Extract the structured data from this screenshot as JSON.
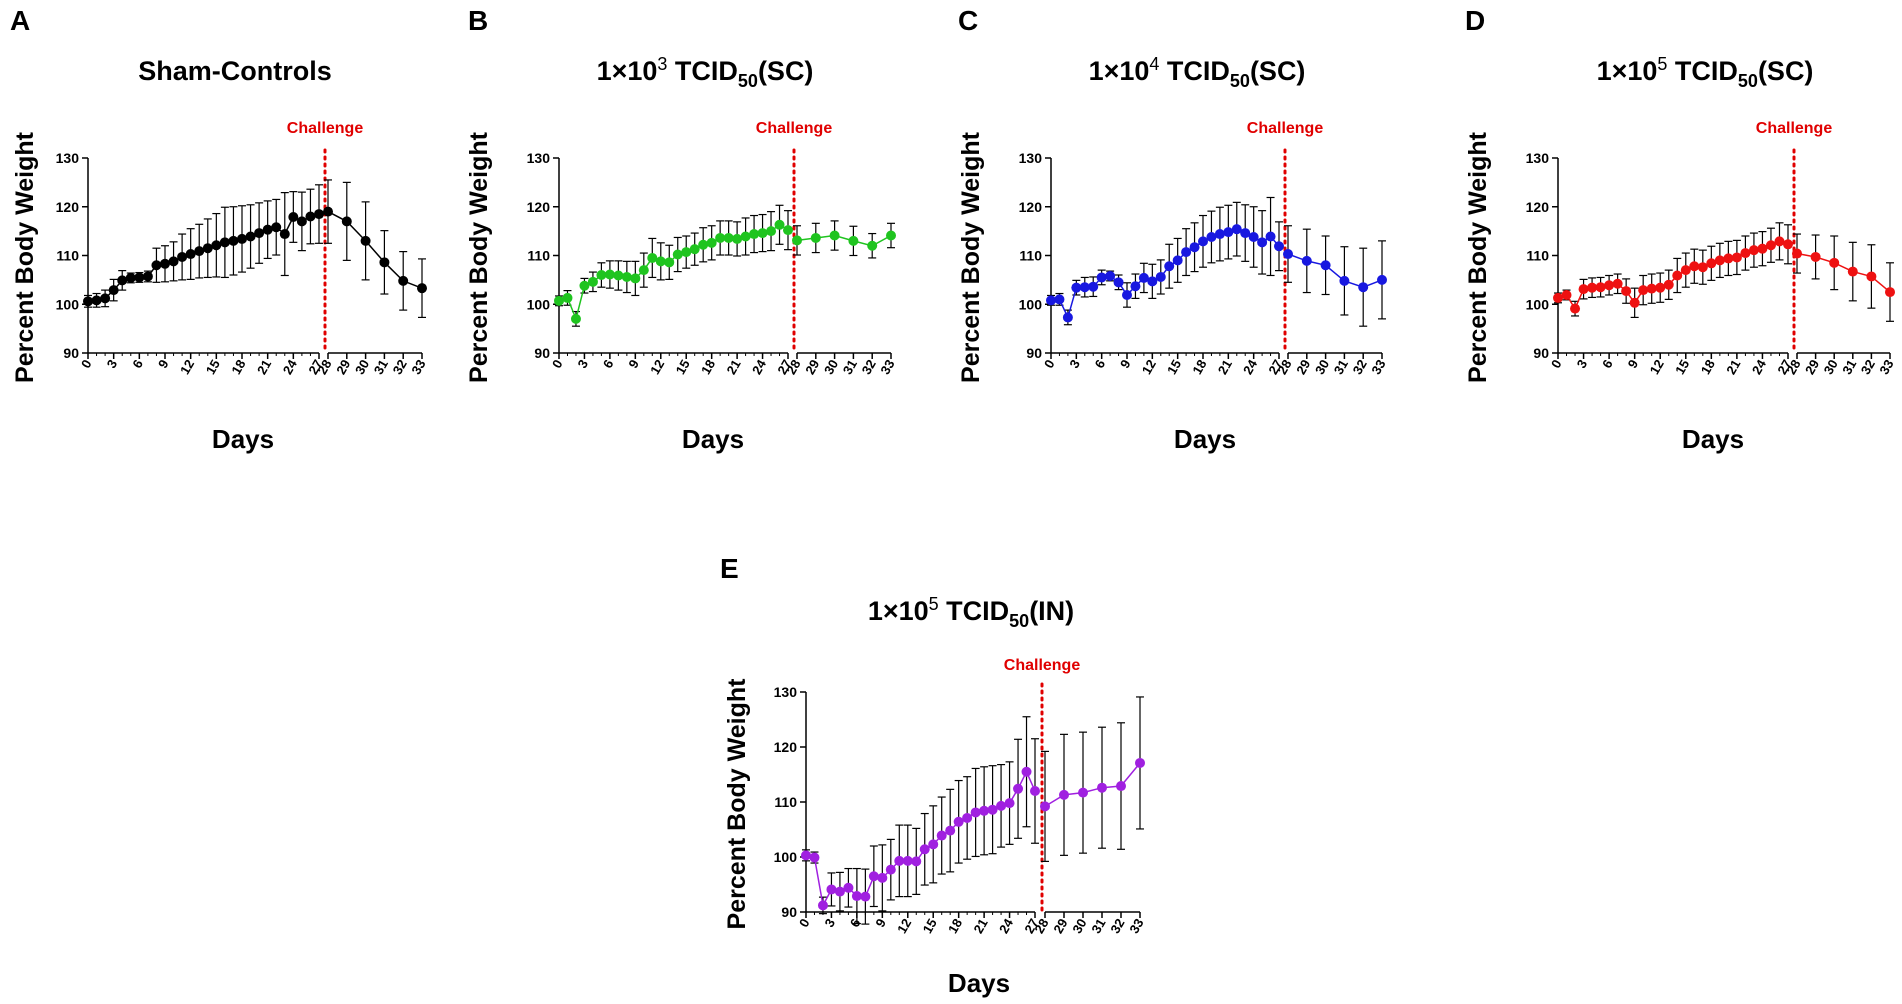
{
  "chart_data": [
    {
      "type": "line",
      "panel_label": "A",
      "title": "Sham-Controls",
      "title_sub": "",
      "title_suffix": "",
      "xlabel": "Days",
      "ylabel": "Percent Body Weight",
      "ylim": [
        90,
        130
      ],
      "yticks": [
        90,
        100,
        110,
        120,
        130
      ],
      "xticks_pre": [
        "0",
        "3",
        "6",
        "9",
        "12",
        "15",
        "18",
        "21",
        "24",
        "27"
      ],
      "xticks_post": [
        "28",
        "29",
        "30",
        "31",
        "32",
        "33"
      ],
      "challenge_label": "Challenge",
      "color": "#000000",
      "series": [
        {
          "name": "pre-challenge",
          "x": [
            0,
            1,
            2,
            3,
            4,
            5,
            6,
            7,
            8,
            9,
            10,
            11,
            12,
            13,
            14,
            15,
            16,
            17,
            18,
            19,
            20,
            21,
            22,
            23,
            24,
            25,
            26,
            27
          ],
          "y": [
            100.6,
            100.8,
            101.2,
            102.9,
            104.9,
            105.4,
            105.5,
            105.7,
            108.0,
            108.3,
            108.8,
            109.7,
            110.3,
            110.9,
            111.5,
            112.1,
            112.7,
            113.0,
            113.4,
            113.9,
            114.6,
            115.3,
            115.8,
            114.4,
            117.9,
            117.0,
            118.0,
            118.5
          ],
          "err": [
            1.2,
            1.4,
            1.7,
            2.2,
            2.0,
            1.0,
            1.0,
            1.1,
            3.5,
            3.7,
            4.0,
            4.7,
            5.2,
            5.5,
            6.0,
            6.5,
            7.2,
            7.0,
            6.8,
            6.5,
            6.2,
            5.9,
            5.7,
            8.5,
            5.2,
            6.0,
            5.6,
            6.0
          ]
        },
        {
          "name": "post-challenge",
          "x": [
            28,
            29,
            30,
            31,
            32,
            33
          ],
          "y": [
            119.0,
            117.0,
            113.0,
            108.6,
            104.8,
            103.3
          ],
          "err": [
            6.5,
            8.0,
            8.0,
            6.5,
            6.0,
            6.0
          ]
        }
      ]
    },
    {
      "type": "line",
      "panel_label": "B",
      "title": "1×10",
      "title_sub": "50",
      "title_suffix": "(SC)",
      "title_exp": "3",
      "title_mid": " TCID",
      "xlabel": "Days",
      "ylabel": "Percent Body Weight",
      "ylim": [
        90,
        130
      ],
      "yticks": [
        90,
        100,
        110,
        120,
        130
      ],
      "xticks_pre": [
        "0",
        "3",
        "6",
        "9",
        "12",
        "15",
        "18",
        "21",
        "24",
        "27"
      ],
      "xticks_post": [
        "28",
        "29",
        "30",
        "31",
        "32",
        "33"
      ],
      "challenge_label": "Challenge",
      "color": "#1fc41f",
      "series": [
        {
          "name": "pre-challenge",
          "x": [
            0,
            1,
            2,
            3,
            4,
            5,
            6,
            7,
            8,
            9,
            10,
            11,
            12,
            13,
            14,
            15,
            16,
            17,
            18,
            19,
            20,
            21,
            22,
            23,
            24,
            25,
            26,
            27
          ],
          "y": [
            100.7,
            101.3,
            97.0,
            103.8,
            104.6,
            106.0,
            106.1,
            105.9,
            105.6,
            105.3,
            107.0,
            109.5,
            108.8,
            108.6,
            110.2,
            110.7,
            111.3,
            112.2,
            112.6,
            113.6,
            113.6,
            113.4,
            113.9,
            114.4,
            114.6,
            115.0,
            116.3,
            115.2
          ],
          "err": [
            1.0,
            1.5,
            1.5,
            1.5,
            2.0,
            2.5,
            2.8,
            3.0,
            3.2,
            3.5,
            3.5,
            4.0,
            3.8,
            3.5,
            3.5,
            3.3,
            3.3,
            3.5,
            3.5,
            3.5,
            3.5,
            3.5,
            3.8,
            3.8,
            3.8,
            4.0,
            4.0,
            4.0
          ]
        },
        {
          "name": "post-challenge",
          "x": [
            28,
            29,
            30,
            31,
            32,
            33
          ],
          "y": [
            113.1,
            113.6,
            114.1,
            113.0,
            112.0,
            114.1
          ],
          "err": [
            3.0,
            3.0,
            3.0,
            3.0,
            2.5,
            2.5
          ]
        }
      ]
    },
    {
      "type": "line",
      "panel_label": "C",
      "title": "1×10",
      "title_sub": "50",
      "title_suffix": "(SC)",
      "title_exp": "4",
      "title_mid": " TCID",
      "xlabel": "Days",
      "ylabel": "Percent Body Weight",
      "ylim": [
        90,
        130
      ],
      "yticks": [
        90,
        100,
        110,
        120,
        130
      ],
      "xticks_pre": [
        "0",
        "3",
        "6",
        "9",
        "12",
        "15",
        "18",
        "21",
        "24",
        "27"
      ],
      "xticks_post": [
        "28",
        "29",
        "30",
        "31",
        "32",
        "33"
      ],
      "challenge_label": "Challenge",
      "color": "#1818e0",
      "series": [
        {
          "name": "pre-challenge",
          "x": [
            0,
            1,
            2,
            3,
            4,
            5,
            6,
            7,
            8,
            9,
            10,
            11,
            12,
            13,
            14,
            15,
            16,
            17,
            18,
            19,
            20,
            21,
            22,
            23,
            24,
            25,
            26,
            27
          ],
          "y": [
            100.8,
            101.0,
            97.3,
            103.4,
            103.5,
            103.6,
            105.5,
            105.8,
            104.5,
            101.9,
            103.7,
            105.4,
            104.7,
            105.6,
            107.8,
            109.0,
            110.7,
            111.7,
            112.9,
            113.8,
            114.4,
            114.8,
            115.4,
            114.6,
            113.8,
            112.7,
            113.9,
            111.9
          ],
          "err": [
            1.0,
            1.2,
            1.5,
            1.5,
            2.0,
            2.0,
            1.5,
            1.0,
            1.5,
            2.5,
            2.5,
            3.0,
            3.5,
            3.5,
            4.5,
            4.5,
            4.8,
            5.0,
            5.3,
            5.3,
            5.5,
            5.5,
            5.5,
            5.8,
            6.2,
            6.5,
            8.0,
            5.0
          ]
        },
        {
          "name": "post-challenge",
          "x": [
            28,
            29,
            30,
            31,
            32,
            33
          ],
          "y": [
            110.3,
            108.9,
            108.0,
            104.8,
            103.5,
            105.0
          ],
          "err": [
            5.8,
            6.5,
            6.0,
            7.0,
            8.0,
            8.0
          ]
        }
      ]
    },
    {
      "type": "line",
      "panel_label": "D",
      "title": "1×10",
      "title_sub": "50",
      "title_suffix": "(SC)",
      "title_exp": "5",
      "title_mid": " TCID",
      "xlabel": "Days",
      "ylabel": "Percent Body Weight",
      "ylim": [
        90,
        130
      ],
      "yticks": [
        90,
        100,
        110,
        120,
        130
      ],
      "xticks_pre": [
        "0",
        "3",
        "6",
        "9",
        "12",
        "15",
        "18",
        "21",
        "24",
        "27"
      ],
      "xticks_post": [
        "28",
        "29",
        "30",
        "31",
        "32",
        "33"
      ],
      "challenge_label": "Challenge",
      "color": "#ee1111",
      "series": [
        {
          "name": "pre-challenge",
          "x": [
            0,
            1,
            2,
            3,
            4,
            5,
            6,
            7,
            8,
            9,
            10,
            11,
            12,
            13,
            14,
            15,
            16,
            17,
            18,
            19,
            20,
            21,
            22,
            23,
            24,
            25,
            26,
            27
          ],
          "y": [
            101.3,
            101.9,
            99.1,
            103.1,
            103.4,
            103.5,
            103.9,
            104.2,
            102.7,
            100.3,
            102.9,
            103.2,
            103.4,
            104.0,
            105.9,
            107.0,
            107.8,
            107.6,
            108.4,
            109.0,
            109.4,
            109.6,
            110.5,
            111.1,
            111.4,
            112.1,
            112.9,
            112.3
          ],
          "err": [
            1.0,
            1.0,
            1.5,
            2.0,
            2.0,
            2.0,
            2.0,
            2.0,
            2.5,
            3.0,
            3.0,
            3.0,
            3.0,
            3.0,
            3.5,
            3.5,
            3.5,
            3.5,
            3.5,
            3.5,
            3.5,
            3.5,
            3.5,
            3.5,
            3.5,
            3.5,
            3.8,
            4.0
          ]
        },
        {
          "name": "post-challenge",
          "x": [
            28,
            29,
            30,
            31,
            32,
            33
          ],
          "y": [
            110.4,
            109.7,
            108.5,
            106.7,
            105.7,
            102.5
          ],
          "err": [
            4.0,
            4.5,
            5.5,
            6.0,
            6.5,
            6.0
          ]
        }
      ]
    },
    {
      "type": "line",
      "panel_label": "E",
      "title": "1×10",
      "title_sub": "50",
      "title_suffix": "(IN)",
      "title_exp": "5",
      "title_mid": " TCID",
      "xlabel": "Days",
      "ylabel": "Percent Body Weight",
      "ylim": [
        90,
        130
      ],
      "yticks": [
        90,
        100,
        110,
        120,
        130
      ],
      "xticks_pre": [
        "0",
        "3",
        "6",
        "9",
        "12",
        "15",
        "18",
        "21",
        "24",
        "27"
      ],
      "xticks_post": [
        "28",
        "29",
        "30",
        "31",
        "32",
        "33"
      ],
      "challenge_label": "Challenge",
      "color": "#a020e0",
      "series": [
        {
          "name": "pre-challenge",
          "x": [
            0,
            1,
            2,
            3,
            4,
            5,
            6,
            7,
            8,
            9,
            10,
            11,
            12,
            13,
            14,
            15,
            16,
            17,
            18,
            19,
            20,
            21,
            22,
            23,
            24,
            25,
            26,
            27
          ],
          "y": [
            100.3,
            99.9,
            91.2,
            94.1,
            93.7,
            94.4,
            92.9,
            92.8,
            96.5,
            96.2,
            97.7,
            99.3,
            99.3,
            99.2,
            101.4,
            102.3,
            103.9,
            104.8,
            106.4,
            107.1,
            108.1,
            108.4,
            108.6,
            109.3,
            109.8,
            112.4,
            115.5,
            112.0
          ],
          "err": [
            1.0,
            1.0,
            1.5,
            3.0,
            3.5,
            3.5,
            5.0,
            5.0,
            5.5,
            6.0,
            5.5,
            6.5,
            6.5,
            6.0,
            6.5,
            7.0,
            7.0,
            7.5,
            7.5,
            7.5,
            8.0,
            8.0,
            8.0,
            7.5,
            7.5,
            9.0,
            10.0,
            9.5
          ]
        },
        {
          "name": "post-challenge",
          "x": [
            28,
            29,
            30,
            31,
            32,
            33
          ],
          "y": [
            109.2,
            111.3,
            111.7,
            112.6,
            112.9,
            117.1
          ],
          "err": [
            10.0,
            11.0,
            11.0,
            11.0,
            11.5,
            12.0
          ]
        }
      ]
    }
  ]
}
